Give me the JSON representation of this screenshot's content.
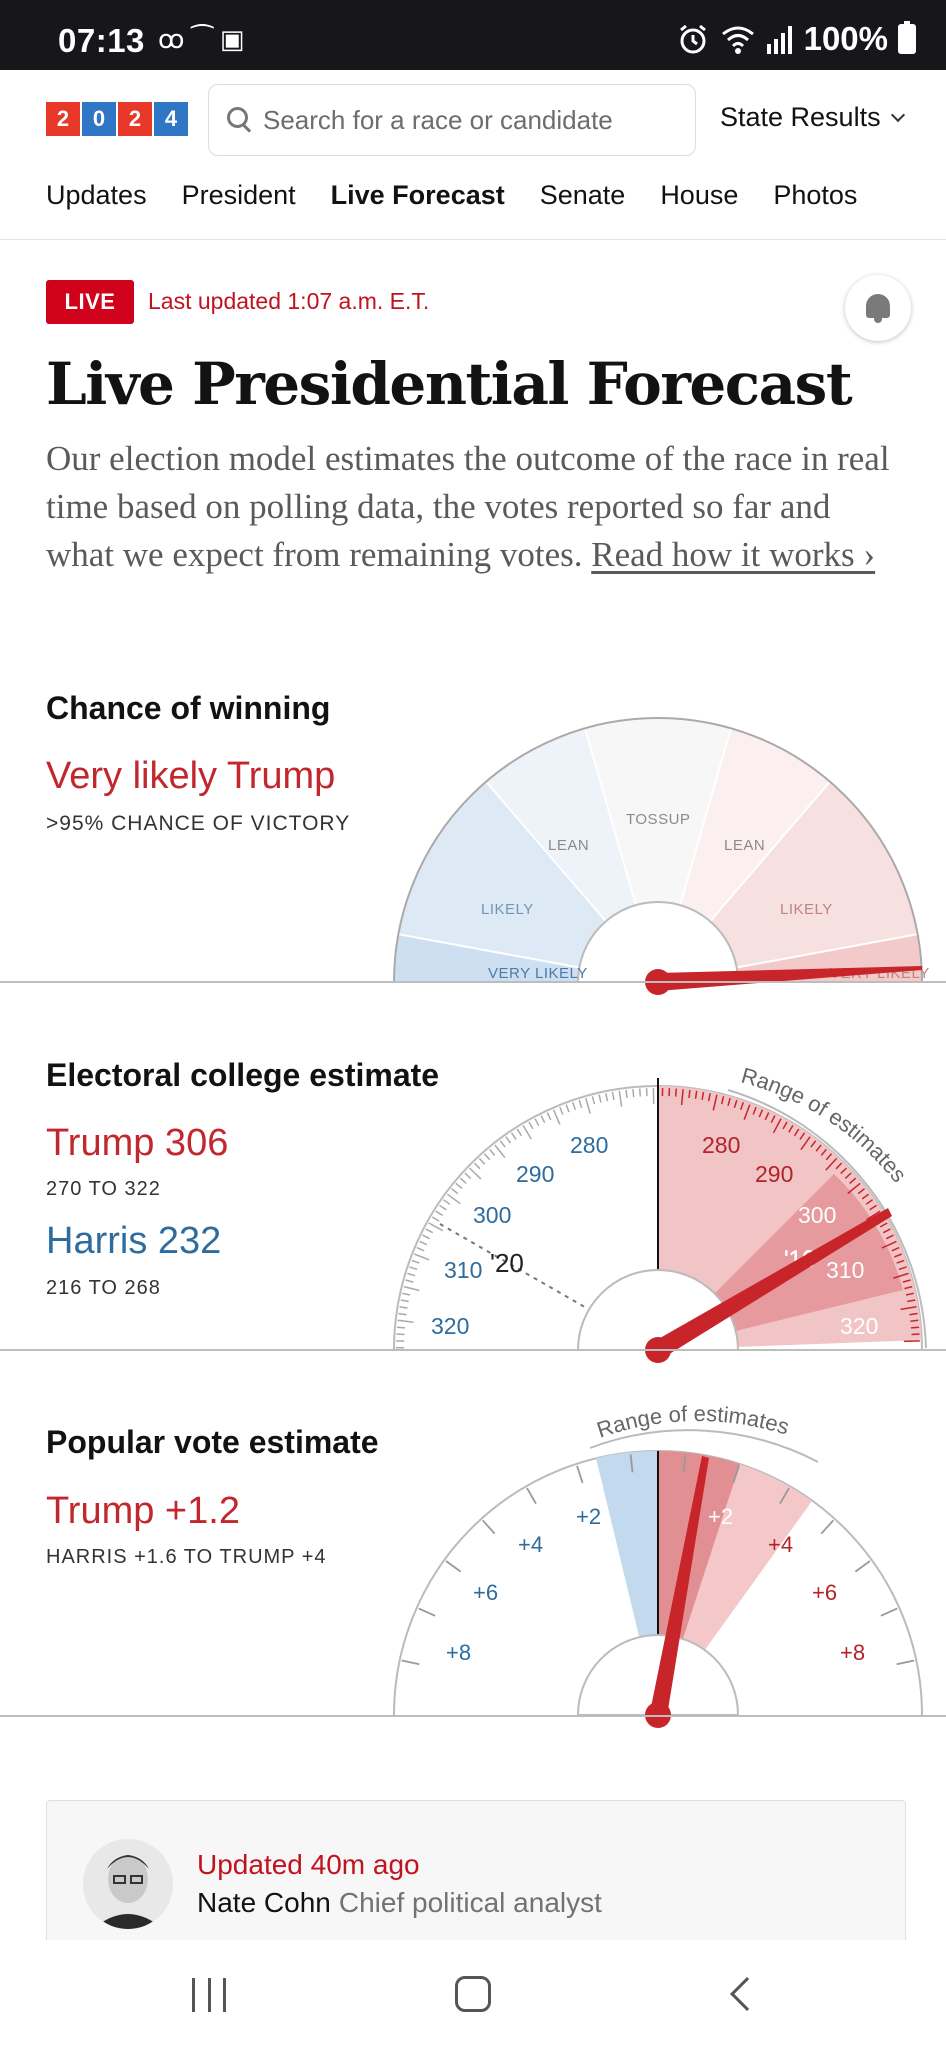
{
  "status_bar": {
    "time": "07:13",
    "left_icons": "ꝏ ⁀ ▣",
    "battery": "100%"
  },
  "header": {
    "logo_digits": [
      "2",
      "0",
      "2",
      "4"
    ],
    "search_placeholder": "Search for a race or candidate",
    "state_results": "State Results",
    "nav": [
      "Updates",
      "President",
      "Live Forecast",
      "Senate",
      "House",
      "Photos"
    ],
    "active_nav": "Live Forecast"
  },
  "live": {
    "badge": "LIVE",
    "updated": "Last updated 1:07 a.m. E.T."
  },
  "page_title": "Live Presidential Forecast",
  "intro": {
    "text": "Our election model estimates the outcome of the race in real time based on polling data, the votes reported so far and what we expect from remaining votes.",
    "link": "Read how it works ›"
  },
  "chance": {
    "title": "Chance of winning",
    "headline": "Very likely Trump",
    "sub": ">95% CHANCE OF VICTORY",
    "labels": {
      "very_likely_left": "VERY LIKELY",
      "likely_left": "LIKELY",
      "lean_left": "LEAN",
      "tossup": "TOSSUP",
      "lean_right": "LEAN",
      "likely_right": "LIKELY",
      "very_likely_right": "VERY LIKELY"
    }
  },
  "electoral": {
    "title": "Electoral college estimate",
    "trump": "Trump 306",
    "trump_range": "270 TO 322",
    "harris": "Harris 232",
    "harris_range": "216 TO 268",
    "range_label": "Range of estimates",
    "left_ticks": [
      "280",
      "290",
      "300",
      "310",
      "320"
    ],
    "right_ticks": [
      "280",
      "290",
      "300",
      "310",
      "320"
    ],
    "mark_2020": "'20",
    "mark_2016": "'16"
  },
  "popular": {
    "title": "Popular vote estimate",
    "headline": "Trump +1.2",
    "sub": "HARRIS +1.6 TO TRUMP +4",
    "range_label": "Range of estimates",
    "left_ticks": [
      "+2",
      "+4",
      "+6",
      "+8"
    ],
    "right_ticks": [
      "+2",
      "+4",
      "+6",
      "+8"
    ]
  },
  "update_card": {
    "updated": "Updated 40m ago",
    "author": "Nate Cohn",
    "role": "Chief political analyst"
  },
  "colors": {
    "red": "#c1272d",
    "blue": "#2e6c9e",
    "live_red": "#d0021b"
  }
}
